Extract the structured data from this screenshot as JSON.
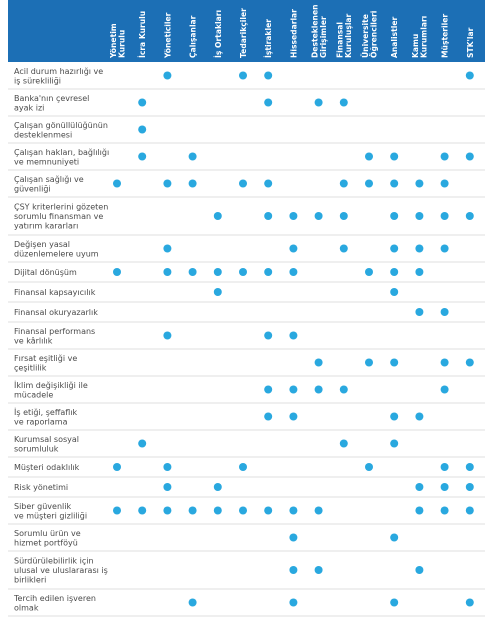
{
  "table": {
    "columns": [
      [
        "Yönetim",
        "Kurulu"
      ],
      [
        "İcra Kurulu"
      ],
      [
        "Yöneticiler"
      ],
      [
        "Çalışanlar"
      ],
      [
        "İş Ortakları"
      ],
      [
        "Tedarikçiler"
      ],
      [
        "İştirakler"
      ],
      [
        "Hissedarlar"
      ],
      [
        "Desteklenen",
        "Girişimler"
      ],
      [
        "Finansal",
        "Kuruluşlar"
      ],
      [
        "Üniversite",
        "Öğrencileri"
      ],
      [
        "Analistler"
      ],
      [
        "Kamu",
        "Kurumları"
      ],
      [
        "Müşteriler"
      ],
      [
        "STK'lar"
      ]
    ],
    "rows": [
      {
        "label": [
          "Acil durum hazırlığı ve",
          "iş sürekliliği"
        ],
        "marks": [
          0,
          0,
          1,
          0,
          0,
          1,
          1,
          0,
          0,
          0,
          0,
          0,
          0,
          0,
          1
        ]
      },
      {
        "label": [
          "Banka'nın çevresel",
          "ayak izi"
        ],
        "marks": [
          0,
          1,
          0,
          0,
          0,
          0,
          1,
          0,
          1,
          1,
          0,
          0,
          0,
          0,
          0
        ]
      },
      {
        "label": [
          "Çalışan gönüllülüğünün",
          "desteklenmesi"
        ],
        "marks": [
          0,
          1,
          0,
          0,
          0,
          0,
          0,
          0,
          0,
          0,
          0,
          0,
          0,
          0,
          0
        ]
      },
      {
        "label": [
          "Çalışan hakları, bağlılığı",
          "ve memnuniyeti"
        ],
        "marks": [
          0,
          1,
          0,
          1,
          0,
          0,
          0,
          0,
          0,
          0,
          1,
          1,
          0,
          1,
          1
        ]
      },
      {
        "label": [
          "Çalışan sağlığı ve",
          "güvenliği"
        ],
        "marks": [
          1,
          0,
          1,
          1,
          0,
          1,
          1,
          0,
          0,
          1,
          1,
          1,
          1,
          1,
          0
        ]
      },
      {
        "label": [
          "ÇSY kriterlerini gözeten",
          "sorumlu finansman ve",
          "yatırım kararları"
        ],
        "marks": [
          0,
          0,
          0,
          0,
          1,
          0,
          1,
          1,
          1,
          1,
          0,
          1,
          1,
          1,
          1
        ]
      },
      {
        "label": [
          "Değişen yasal",
          "düzenlemelere uyum"
        ],
        "marks": [
          0,
          0,
          1,
          0,
          0,
          0,
          0,
          1,
          0,
          1,
          0,
          1,
          1,
          1,
          0
        ]
      },
      {
        "label": [
          "Dijital dönüşüm"
        ],
        "marks": [
          1,
          0,
          1,
          1,
          1,
          1,
          1,
          1,
          0,
          0,
          1,
          1,
          1,
          0,
          0
        ]
      },
      {
        "label": [
          "Finansal kapsayıcılık"
        ],
        "marks": [
          0,
          0,
          0,
          0,
          1,
          0,
          0,
          0,
          0,
          0,
          0,
          1,
          0,
          0,
          0
        ]
      },
      {
        "label": [
          "Finansal okuryazarlık"
        ],
        "marks": [
          0,
          0,
          0,
          0,
          0,
          0,
          0,
          0,
          0,
          0,
          0,
          0,
          1,
          1,
          0
        ]
      },
      {
        "label": [
          "Finansal performans",
          "ve kârlılık"
        ],
        "marks": [
          0,
          0,
          1,
          0,
          0,
          0,
          1,
          1,
          0,
          0,
          0,
          0,
          0,
          0,
          0
        ]
      },
      {
        "label": [
          "Fırsat eşitliği ve",
          "çeşitlilik"
        ],
        "marks": [
          0,
          0,
          0,
          0,
          0,
          0,
          0,
          0,
          1,
          0,
          1,
          1,
          0,
          1,
          1
        ]
      },
      {
        "label": [
          "İklim değişikliği ile",
          "mücadele"
        ],
        "marks": [
          0,
          0,
          0,
          0,
          0,
          0,
          1,
          1,
          1,
          1,
          0,
          0,
          0,
          1,
          0
        ]
      },
      {
        "label": [
          "İş etiği, şeffaflık",
          "ve raporlama"
        ],
        "marks": [
          0,
          0,
          0,
          0,
          0,
          0,
          1,
          1,
          0,
          0,
          0,
          1,
          1,
          0,
          0
        ]
      },
      {
        "label": [
          "Kurumsal sosyal",
          "sorumluluk"
        ],
        "marks": [
          0,
          1,
          0,
          0,
          0,
          0,
          0,
          0,
          0,
          1,
          0,
          1,
          0,
          0,
          0
        ]
      },
      {
        "label": [
          "Müşteri odaklılık"
        ],
        "marks": [
          1,
          0,
          1,
          0,
          0,
          1,
          0,
          0,
          0,
          0,
          1,
          0,
          0,
          1,
          1
        ]
      },
      {
        "label": [
          "Risk yönetimi"
        ],
        "marks": [
          0,
          0,
          1,
          0,
          1,
          0,
          0,
          0,
          0,
          0,
          0,
          0,
          1,
          1,
          1
        ]
      },
      {
        "label": [
          "Siber güvenlik",
          "ve müşteri gizliliği"
        ],
        "marks": [
          1,
          1,
          1,
          1,
          1,
          1,
          1,
          1,
          1,
          0,
          0,
          0,
          1,
          1,
          1
        ]
      },
      {
        "label": [
          "Sorumlu ürün ve",
          "hizmet portföyü"
        ],
        "marks": [
          0,
          0,
          0,
          0,
          0,
          0,
          0,
          1,
          0,
          0,
          0,
          1,
          0,
          0,
          0
        ]
      },
      {
        "label": [
          "Sürdürülebilirlik için",
          "ulusal ve uluslararası iş",
          "birlikleri"
        ],
        "marks": [
          0,
          0,
          0,
          0,
          0,
          0,
          0,
          1,
          1,
          0,
          0,
          0,
          1,
          0,
          0
        ]
      },
      {
        "label": [
          "Tercih edilen işveren",
          "olmak"
        ],
        "marks": [
          0,
          0,
          0,
          1,
          0,
          0,
          0,
          1,
          0,
          0,
          0,
          1,
          0,
          0,
          1
        ]
      }
    ]
  }
}
